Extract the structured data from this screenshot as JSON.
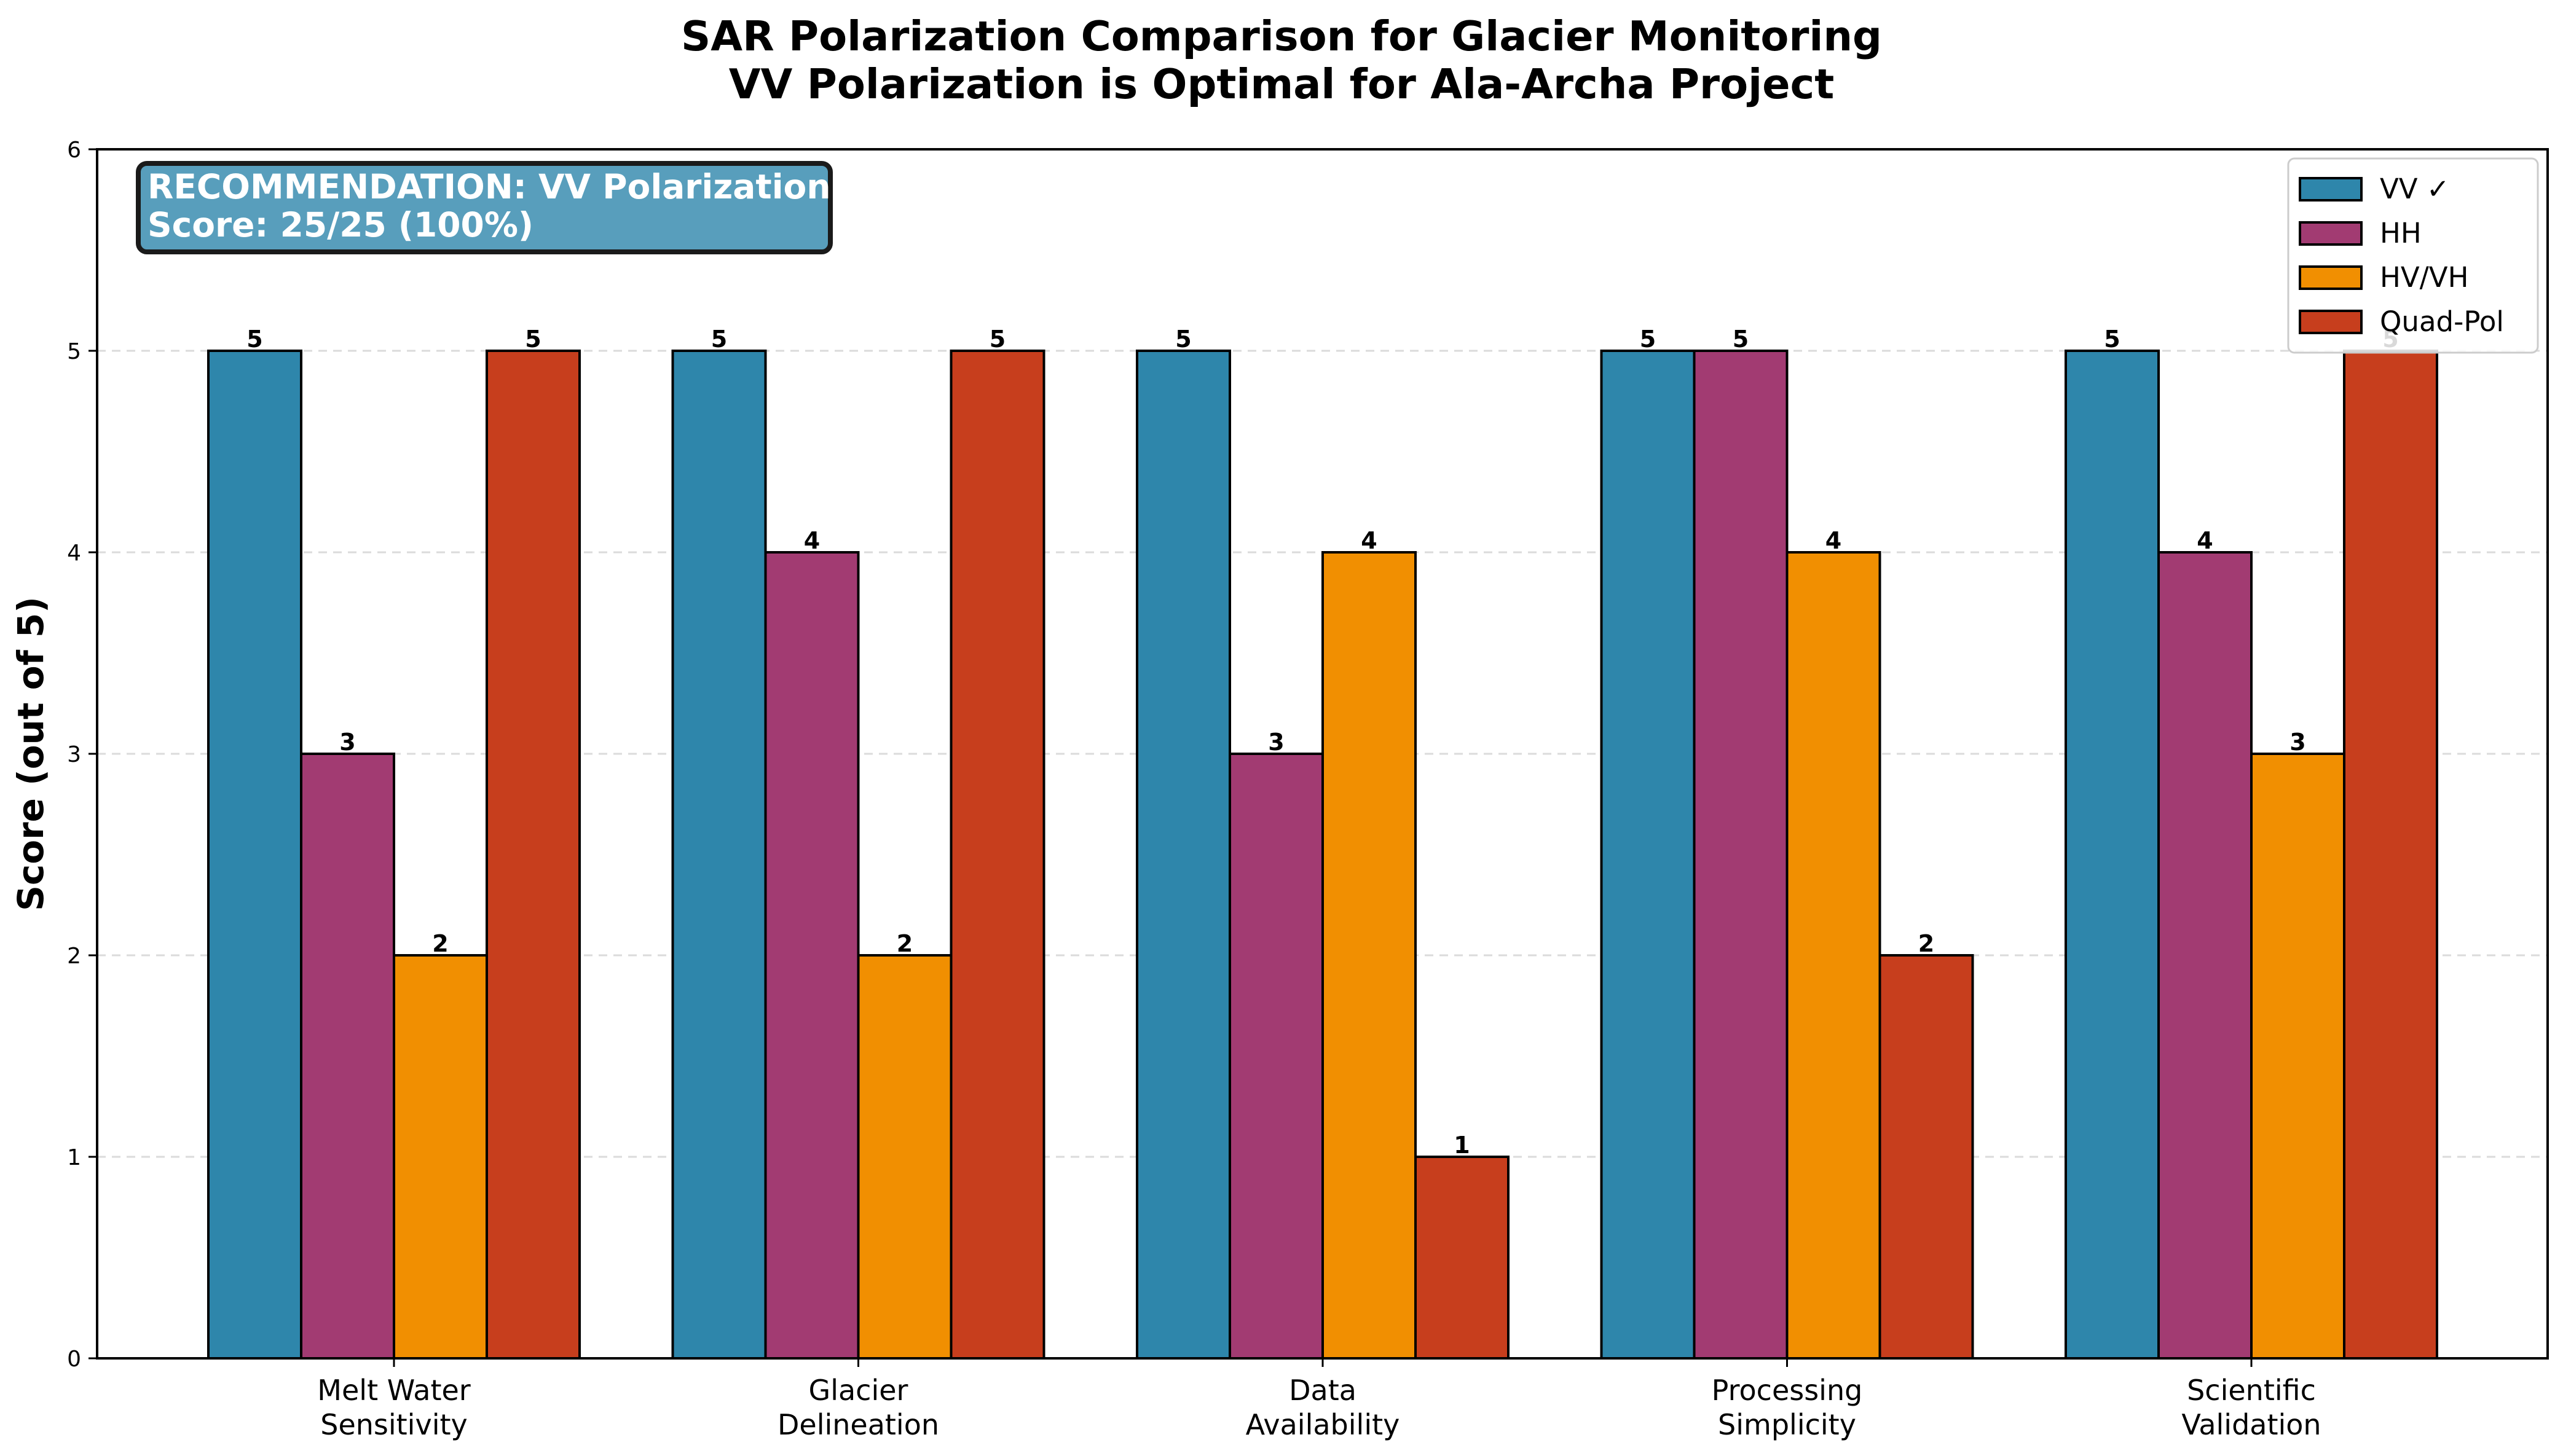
{
  "chart_data": {
    "type": "bar",
    "title": [
      "SAR Polarization Comparison for Glacier Monitoring",
      "VV Polarization is Optimal for Ala-Archa Project"
    ],
    "xlabel": "",
    "ylabel": "Score (out of 5)",
    "ylim": [
      0,
      6
    ],
    "yticks": [
      "0",
      "1",
      "2",
      "3",
      "4",
      "5",
      "6"
    ],
    "categories": [
      [
        "Melt Water",
        "Sensitivity"
      ],
      [
        "Glacier",
        "Delineation"
      ],
      [
        "Data",
        "Availability"
      ],
      [
        "Processing",
        "Simplicity"
      ],
      [
        "Scientific",
        "Validation"
      ]
    ],
    "series": [
      {
        "name": "VV ✓",
        "color": "#2E86AB",
        "values": [
          5,
          5,
          5,
          5,
          5
        ]
      },
      {
        "name": "HH",
        "color": "#A23B72",
        "values": [
          3,
          4,
          3,
          5,
          4
        ]
      },
      {
        "name": "HV/VH",
        "color": "#F18F01",
        "values": [
          2,
          2,
          4,
          4,
          3
        ]
      },
      {
        "name": "Quad-Pol",
        "color": "#C73E1D",
        "values": [
          5,
          5,
          1,
          2,
          5
        ]
      }
    ],
    "grid": "y-dashed",
    "legend_position": "top-right",
    "annotation": [
      "RECOMMENDATION: VV Polarization",
      "Score: 25/25 (100%)"
    ]
  }
}
